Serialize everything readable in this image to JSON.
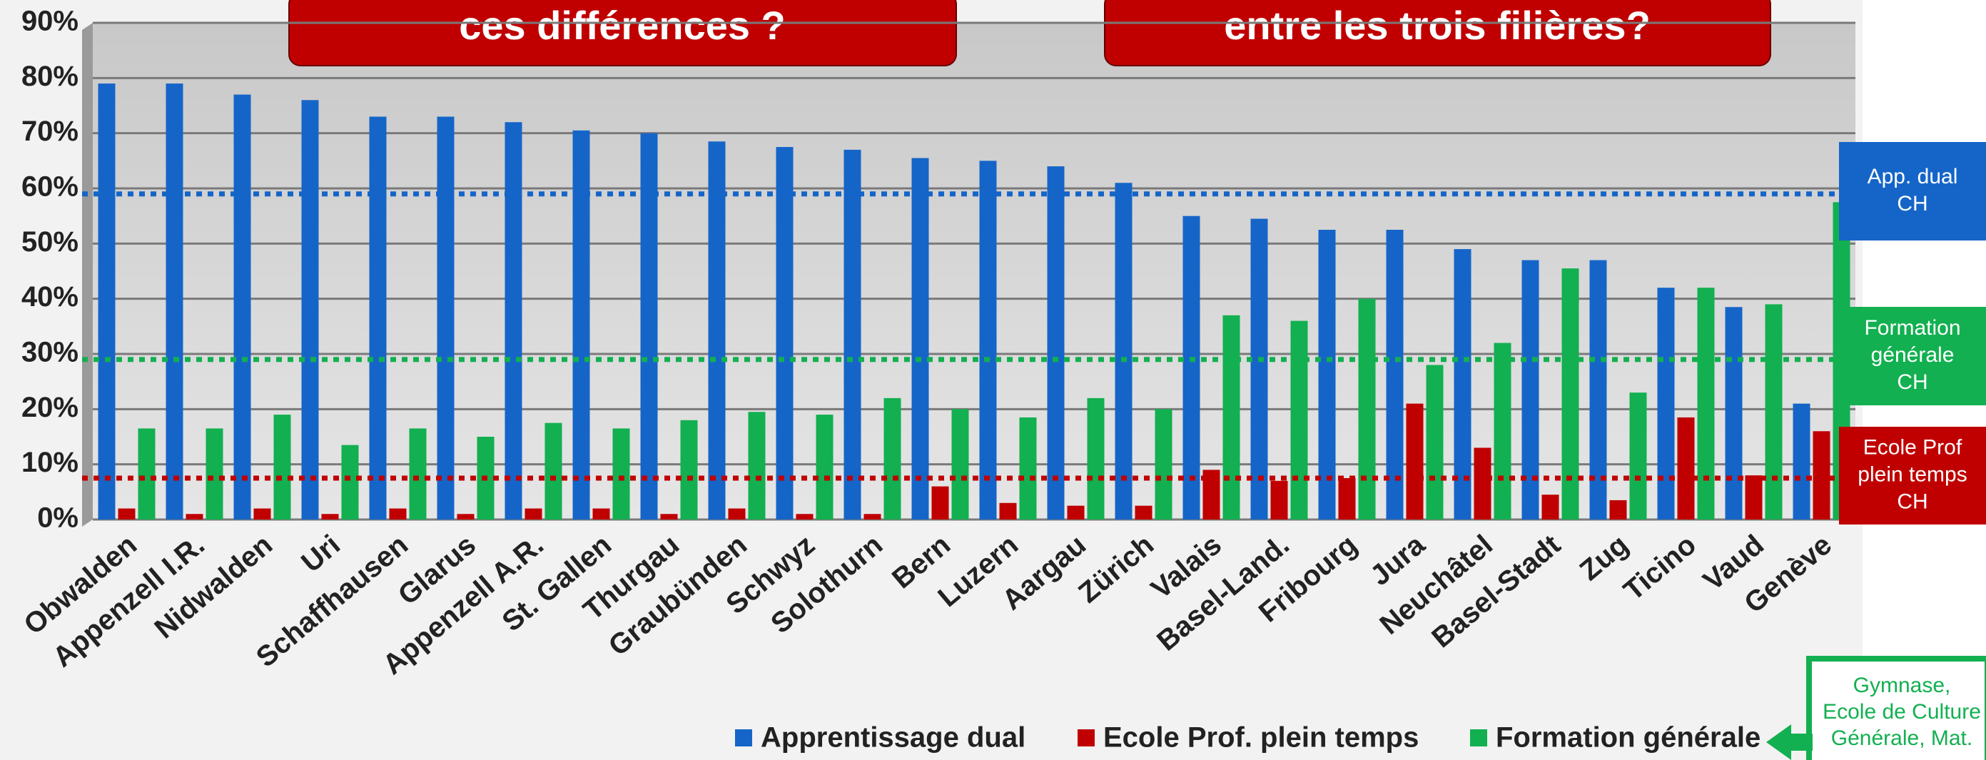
{
  "chart_data": {
    "type": "bar",
    "title_boxes": [
      "ces différences ?",
      "entre les trois filières?"
    ],
    "categories": [
      "Obwalden",
      "Appenzell I.R.",
      "Nidwalden",
      "Uri",
      "Schaffhausen",
      "Glarus",
      "Appenzell A.R.",
      "St. Gallen",
      "Thurgau",
      "Graubünden",
      "Schwyz",
      "Solothurn",
      "Bern",
      "Luzern",
      "Aargau",
      "Zürich",
      "Valais",
      "Basel-Land.",
      "Fribourg",
      "Jura",
      "Neuchâtel",
      "Basel-Stadt",
      "Zug",
      "Ticino",
      "Vaud",
      "Genève"
    ],
    "series": [
      {
        "name": "Apprentissage dual",
        "color": "#1565c8",
        "values": [
          79,
          79,
          77,
          76,
          73,
          73,
          72,
          70.5,
          70,
          68.5,
          67.5,
          67,
          65.5,
          65,
          64,
          61,
          55,
          54.5,
          52.5,
          52.5,
          49,
          47,
          47,
          42,
          38.5,
          21
        ]
      },
      {
        "name": "Ecole Prof. plein temps",
        "color": "#c00000",
        "values": [
          2,
          1,
          2,
          1,
          2,
          1,
          2,
          2,
          1,
          2,
          1,
          1,
          6,
          3,
          2.5,
          2.5,
          9,
          7,
          7.5,
          21,
          13,
          4.5,
          3.5,
          18.5,
          8,
          16
        ]
      },
      {
        "name": "Formation générale",
        "color": "#12b050",
        "values": [
          16.5,
          16.5,
          19,
          13.5,
          16.5,
          15,
          17.5,
          16.5,
          18,
          19.5,
          19,
          22,
          20,
          18.5,
          22,
          20,
          37,
          36,
          40,
          28,
          32,
          45.5,
          23,
          42,
          39,
          57.5
        ]
      }
    ],
    "reference_lines": [
      {
        "label_lines": [
          "App. dual",
          "CH"
        ],
        "value": 59,
        "color": "#1565c8"
      },
      {
        "label_lines": [
          "Formation",
          "générale",
          "CH"
        ],
        "value": 29,
        "color": "#12b050"
      },
      {
        "label_lines": [
          "Ecole Prof",
          "plein temps",
          "CH"
        ],
        "value": 7.5,
        "color": "#c00000"
      }
    ],
    "note_lines": [
      "Gymnase,",
      "Ecole de Culture",
      "Générale, Mat."
    ],
    "ylim": [
      0,
      90
    ],
    "yticks": [
      {
        "value": 0,
        "label": "0%"
      },
      {
        "value": 10,
        "label": "10%"
      },
      {
        "value": 20,
        "label": "20%"
      },
      {
        "value": 30,
        "label": "30%"
      },
      {
        "value": 40,
        "label": "40%"
      },
      {
        "value": 50,
        "label": "50%"
      },
      {
        "value": 60,
        "label": "60%"
      },
      {
        "value": 70,
        "label": "70%"
      },
      {
        "value": 80,
        "label": "80%"
      },
      {
        "value": 90,
        "label": "90%"
      }
    ],
    "grid": true
  }
}
